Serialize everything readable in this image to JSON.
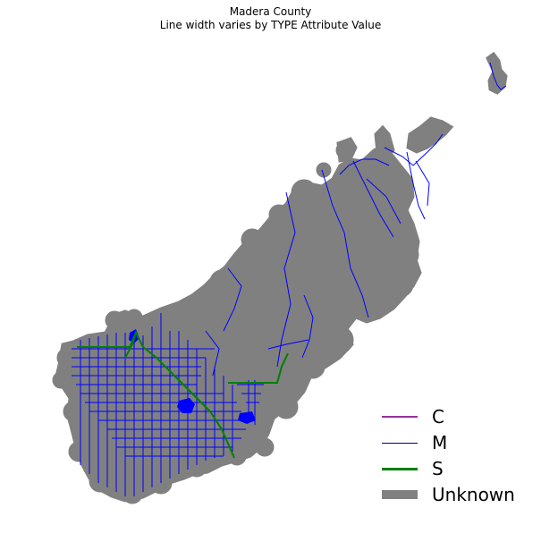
{
  "title": {
    "line1": "Madera County",
    "line2": "Line width varies by TYPE Attribute Value"
  },
  "legend": {
    "items": [
      {
        "label": "C",
        "color": "#9b309b",
        "kind": "line-thin"
      },
      {
        "label": "M",
        "color": "#00007f",
        "kind": "line-hair"
      },
      {
        "label": "S",
        "color": "#008000",
        "kind": "line-medium"
      },
      {
        "label": "Unknown",
        "color": "#808080",
        "kind": "patch"
      }
    ]
  },
  "colors": {
    "unknown": "#808080",
    "major_roads": "#0000ff",
    "secondary_roads": "#008000",
    "background": "#ffffff"
  }
}
